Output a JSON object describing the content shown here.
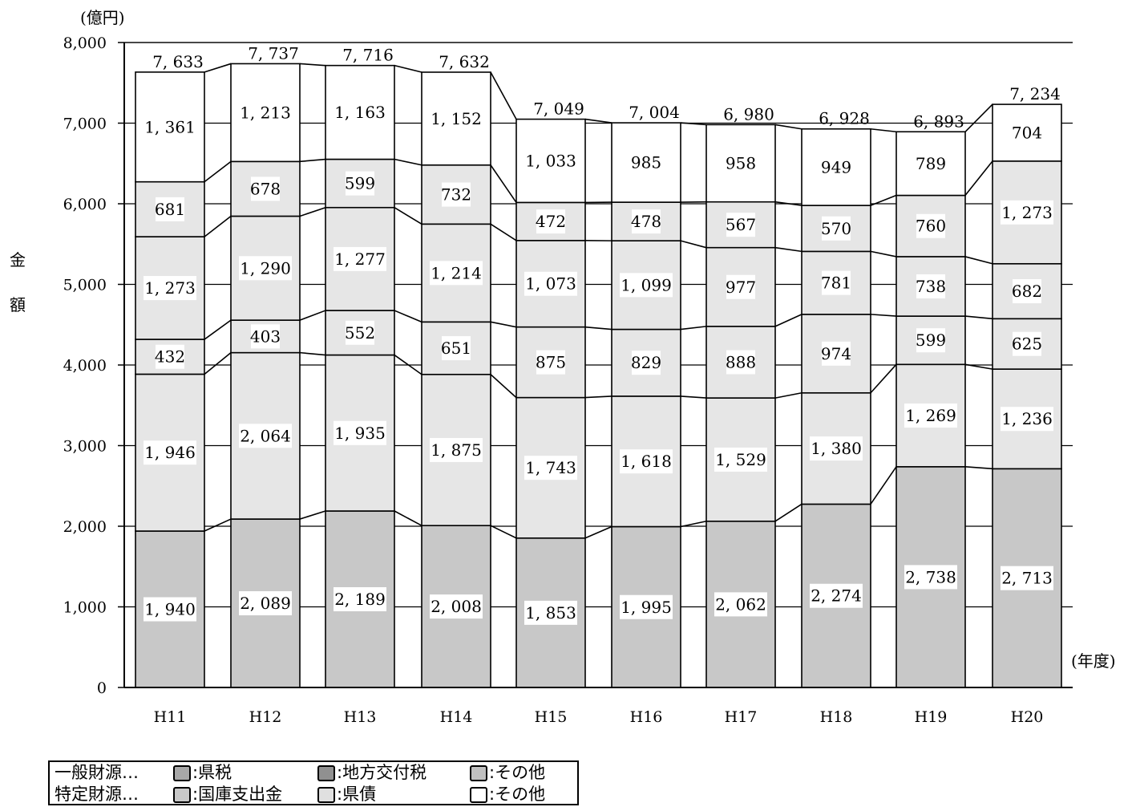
{
  "chart_data": {
    "type": "bar",
    "stacked": true,
    "unit_label": "(億円)",
    "ylabel": "金額",
    "xlabel": "(年度)",
    "ylim": [
      0,
      8000
    ],
    "yticks": [
      "0",
      "1,000",
      "2,000",
      "3,000",
      "4,000",
      "5,000",
      "6,000",
      "7,000",
      "8,000"
    ],
    "ytick_values": [
      0,
      1000,
      2000,
      3000,
      4000,
      5000,
      6000,
      7000,
      8000
    ],
    "categories": [
      "H11",
      "H12",
      "H13",
      "H14",
      "H15",
      "H16",
      "H17",
      "H18",
      "H19",
      "H20"
    ],
    "series": [
      {
        "values": [
          1940,
          2089,
          2189,
          2008,
          1853,
          1995,
          2062,
          2274,
          2738,
          2713
        ],
        "labels": [
          "1, 940",
          "2, 089",
          "2, 189",
          "2, 008",
          "1, 853",
          "1, 995",
          "2, 062",
          "2, 274",
          "2, 738",
          "2, 713"
        ],
        "color": "#c8c8c8"
      },
      {
        "values": [
          1946,
          2064,
          1935,
          1875,
          1743,
          1618,
          1529,
          1380,
          1269,
          1236
        ],
        "labels": [
          "1, 946",
          "2, 064",
          "1, 935",
          "1, 875",
          "1, 743",
          "1, 618",
          "1, 529",
          "1, 380",
          "1, 269",
          "1, 236"
        ],
        "color": "#e6e6e6"
      },
      {
        "values": [
          432,
          403,
          552,
          651,
          875,
          829,
          888,
          974,
          599,
          625
        ],
        "labels": [
          "432",
          "403",
          "552",
          "651",
          "875",
          "829",
          "888",
          "974",
          "599",
          "625"
        ],
        "color": "#e6e6e6"
      },
      {
        "values": [
          1273,
          1290,
          1277,
          1214,
          1073,
          1099,
          977,
          781,
          738,
          682
        ],
        "labels": [
          "1, 273",
          "1, 290",
          "1, 277",
          "1, 214",
          "1, 073",
          "1, 099",
          "977",
          "781",
          "738",
          "682"
        ],
        "color": "#e6e6e6"
      },
      {
        "values": [
          681,
          678,
          599,
          732,
          472,
          478,
          567,
          570,
          760,
          1273
        ],
        "labels": [
          "681",
          "678",
          "599",
          "732",
          "472",
          "478",
          "567",
          "570",
          "760",
          "1, 273"
        ],
        "color": "#e6e6e6"
      },
      {
        "values": [
          1361,
          1213,
          1163,
          1152,
          1033,
          985,
          958,
          949,
          789,
          704
        ],
        "labels": [
          "1, 361",
          "1, 213",
          "1, 163",
          "1, 152",
          "1, 033",
          "985",
          "958",
          "949",
          "789",
          "704"
        ],
        "color": "#ffffff"
      }
    ],
    "totals": [
      7633,
      7737,
      7716,
      7632,
      7049,
      7004,
      6980,
      6928,
      6893,
      7234
    ],
    "total_labels": [
      "7, 633",
      "7, 737",
      "7, 716",
      "7, 632",
      "7, 049",
      "7, 004",
      "6, 980",
      "6, 928",
      "6, 893",
      "7, 234"
    ],
    "grid": true
  },
  "legend": {
    "row1_head": "一般財源…",
    "row2_head": "特定財源…",
    "items": [
      {
        "label": ":県税",
        "color": "#a8a8a8"
      },
      {
        "label": ":地方交付税",
        "color": "#909090"
      },
      {
        "label": ":その他",
        "color": "#c0c0c0"
      },
      {
        "label": ":国庫支出金",
        "color": "#c8c8c8"
      },
      {
        "label": ":県債",
        "color": "#e0e0e0"
      },
      {
        "label": ":その他",
        "color": "#ffffff"
      }
    ]
  }
}
